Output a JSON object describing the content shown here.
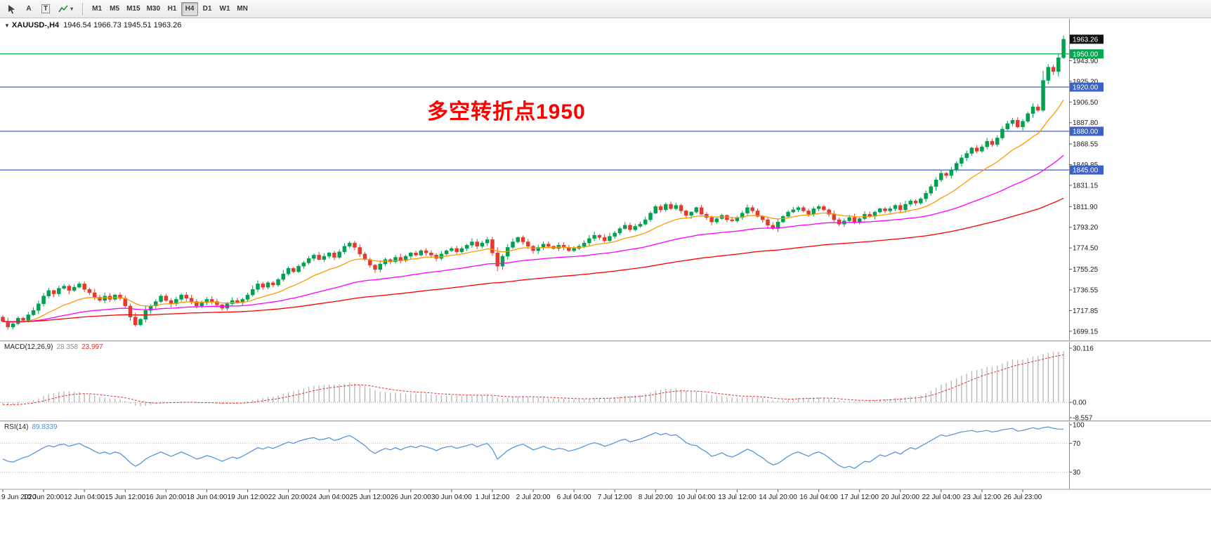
{
  "toolbar": {
    "tools": [
      {
        "label": "A"
      },
      {
        "label": "T"
      }
    ],
    "timeframes": [
      "M1",
      "M5",
      "M15",
      "M30",
      "H1",
      "H4",
      "D1",
      "W1",
      "MN"
    ],
    "active_timeframe": "H4"
  },
  "chart": {
    "symbol_title": "XAUUSD-,H4",
    "ohlc_text": "1946.54 1966.73 1945.51 1963.26",
    "annotation": {
      "text": "多空转折点1950",
      "color": "#FF0000"
    }
  },
  "chart_data": {
    "type": "candlestick",
    "symbol": "XAUUSD",
    "timeframe": "H4",
    "current_ohlc": {
      "open": 1946.54,
      "high": 1966.73,
      "low": 1945.51,
      "close": 1963.26
    },
    "candle_colors": {
      "up": "#00a150",
      "down": "#e13b30"
    },
    "price_axis_range": [
      1691.0,
      1981.6
    ],
    "price_axis_ticks": [
      "1943.90",
      "1925.20",
      "1906.50",
      "1887.80",
      "1868.55",
      "1849.85",
      "1831.15",
      "1811.90",
      "1793.20",
      "1774.50",
      "1755.25",
      "1736.55",
      "1717.85",
      "1699.15"
    ],
    "last_price": {
      "value": 1963.26,
      "label": "1963.26",
      "badge_color": "#111111"
    },
    "horizontal_levels": [
      {
        "price": 1950.0,
        "label": "1950.00",
        "color": "#00A94F"
      },
      {
        "price": 1920.0,
        "label": "1920.00",
        "color": "#3A62C9"
      },
      {
        "price": 1880.0,
        "label": "1880.00",
        "color": "#3A62C9"
      },
      {
        "price": 1845.0,
        "label": "1845.00",
        "color": "#3A62C9"
      }
    ],
    "moving_averages": [
      {
        "name": "fast-ma",
        "period": 16,
        "color": "#FF9900"
      },
      {
        "name": "mid-ma",
        "period": 55,
        "color": "#FF00FF"
      },
      {
        "name": "slow-ma",
        "period": 130,
        "color": "#FF0000"
      }
    ],
    "x_labels": [
      "9 Jun 2020",
      "10 Jun 20:00",
      "12 Jun 04:00",
      "15 Jun 12:00",
      "16 Jun 20:00",
      "18 Jun 04:00",
      "19 Jun 12:00",
      "22 Jun 20:00",
      "24 Jun 04:00",
      "25 Jun 12:00",
      "26 Jun 20:00",
      "30 Jun 04:00",
      "1 Jul 12:00",
      "2 Jul 20:00",
      "6 Jul 04:00",
      "7 Jul 12:00",
      "8 Jul 20:00",
      "10 Jul 04:00",
      "13 Jul 12:00",
      "14 Jul 20:00",
      "16 Jul 04:00",
      "17 Jul 12:00",
      "20 Jul 20:00",
      "22 Jul 04:00",
      "23 Jul 12:00",
      "26 Jul 23:00"
    ],
    "closes": [
      1708,
      1703,
      1706,
      1711,
      1709,
      1714,
      1718,
      1724,
      1731,
      1736,
      1733,
      1738,
      1740,
      1736,
      1739,
      1742,
      1737,
      1734,
      1730,
      1727,
      1731,
      1728,
      1732,
      1729,
      1722,
      1712,
      1705,
      1710,
      1718,
      1722,
      1726,
      1731,
      1727,
      1724,
      1728,
      1732,
      1729,
      1726,
      1722,
      1725,
      1728,
      1726,
      1723,
      1720,
      1724,
      1727,
      1725,
      1728,
      1732,
      1737,
      1742,
      1739,
      1743,
      1741,
      1746,
      1751,
      1756,
      1753,
      1758,
      1761,
      1765,
      1768,
      1764,
      1767,
      1770,
      1766,
      1771,
      1776,
      1779,
      1775,
      1769,
      1764,
      1759,
      1755,
      1760,
      1764,
      1762,
      1766,
      1763,
      1767,
      1770,
      1768,
      1772,
      1770,
      1768,
      1765,
      1769,
      1772,
      1774,
      1771,
      1774,
      1777,
      1780,
      1776,
      1779,
      1782,
      1770,
      1758,
      1767,
      1775,
      1780,
      1784,
      1780,
      1776,
      1772,
      1775,
      1778,
      1776,
      1774,
      1777,
      1775,
      1772,
      1774,
      1776,
      1779,
      1783,
      1786,
      1784,
      1781,
      1785,
      1788,
      1792,
      1795,
      1791,
      1794,
      1796,
      1800,
      1806,
      1812,
      1809,
      1814,
      1810,
      1813,
      1808,
      1804,
      1807,
      1811,
      1805,
      1802,
      1798,
      1801,
      1804,
      1800,
      1799,
      1802,
      1806,
      1811,
      1808,
      1803,
      1800,
      1795,
      1792,
      1798,
      1803,
      1807,
      1809,
      1811,
      1808,
      1805,
      1810,
      1812,
      1809,
      1805,
      1800,
      1796,
      1799,
      1802,
      1798,
      1801,
      1805,
      1803,
      1807,
      1810,
      1808,
      1810,
      1813,
      1809,
      1814,
      1817,
      1815,
      1819,
      1824,
      1830,
      1836,
      1842,
      1840,
      1845,
      1851,
      1856,
      1860,
      1865,
      1862,
      1866,
      1871,
      1868,
      1874,
      1882,
      1887,
      1890,
      1884,
      1889,
      1896,
      1902,
      1899,
      1926,
      1938,
      1934,
      1946.5,
      1963.26
    ],
    "macd": {
      "label": "MACD(12,26,9)",
      "main_value": "28.358",
      "signal_value": "23.997",
      "signal_period": 9,
      "histogram_color": "#b6b6b6",
      "signal_color": "#e03131",
      "scale_labels": [
        "30.116",
        "0.00",
        "-8.557"
      ],
      "values": [
        -1.2,
        -1.6,
        -1.4,
        -0.8,
        -0.2,
        0.4,
        1.2,
        2.2,
        3.4,
        4.5,
        5.2,
        5.8,
        6.2,
        6.0,
        5.8,
        5.7,
        5.2,
        4.6,
        3.8,
        3.0,
        2.6,
        2.2,
        2.0,
        1.7,
        0.8,
        -0.6,
        -1.8,
        -2.2,
        -1.9,
        -1.4,
        -0.8,
        -0.2,
        0.1,
        0.0,
        0.1,
        0.4,
        0.3,
        0.0,
        -0.4,
        -0.5,
        -0.3,
        -0.4,
        -0.7,
        -1.0,
        -0.8,
        -0.5,
        -0.4,
        -0.1,
        0.5,
        1.2,
        2.0,
        2.4,
        3.0,
        3.2,
        3.8,
        4.6,
        5.6,
        6.2,
        7.0,
        7.8,
        8.6,
        9.2,
        9.4,
        9.6,
        9.9,
        9.8,
        10.0,
        10.4,
        10.8,
        10.6,
        10.0,
        9.0,
        7.8,
        6.6,
        6.0,
        5.8,
        5.4,
        5.4,
        5.0,
        4.9,
        5.0,
        4.9,
        5.0,
        4.8,
        4.4,
        4.0,
        3.8,
        3.8,
        3.8,
        3.6,
        3.6,
        3.7,
        3.9,
        3.8,
        3.9,
        4.1,
        3.6,
        2.6,
        2.2,
        2.4,
        2.8,
        3.2,
        3.4,
        3.2,
        2.8,
        2.6,
        2.5,
        2.3,
        2.1,
        2.0,
        1.9,
        1.7,
        1.6,
        1.6,
        1.8,
        2.1,
        2.4,
        2.5,
        2.4,
        2.5,
        2.8,
        3.2,
        3.6,
        3.7,
        3.9,
        4.1,
        4.7,
        5.5,
        6.5,
        7.0,
        7.6,
        7.5,
        7.5,
        7.0,
        6.3,
        6.0,
        5.9,
        5.3,
        4.7,
        3.9,
        3.5,
        3.3,
        2.9,
        2.6,
        2.5,
        2.7,
        3.0,
        3.0,
        2.7,
        2.3,
        1.6,
        1.0,
        0.9,
        1.2,
        1.6,
        2.0,
        2.4,
        2.5,
        2.4,
        2.6,
        2.8,
        2.7,
        2.2,
        1.6,
        1.0,
        0.7,
        0.7,
        0.4,
        0.5,
        0.8,
        0.9,
        1.2,
        1.6,
        1.7,
        2.0,
        2.4,
        2.4,
        2.8,
        3.2,
        3.3,
        4.0,
        5.0,
        6.4,
        8.0,
        9.8,
        10.8,
        12.0,
        13.4,
        14.8,
        16.0,
        17.4,
        18.0,
        18.8,
        19.6,
        19.8,
        20.4,
        21.6,
        22.8,
        23.8,
        23.6,
        23.8,
        24.6,
        25.6,
        25.8,
        26.8,
        27.6,
        28.0,
        28.2,
        28.358
      ]
    },
    "rsi": {
      "label": "RSI(14)",
      "value": "89.8339",
      "line_color": "#4a90d9",
      "levels": [
        70,
        30
      ],
      "scale_labels": [
        "100",
        "70",
        "30"
      ],
      "values": [
        48,
        45,
        44,
        47,
        50,
        52,
        56,
        60,
        64,
        67,
        65,
        68,
        69,
        66,
        68,
        70,
        66,
        63,
        59,
        56,
        58,
        55,
        58,
        56,
        50,
        43,
        38,
        42,
        48,
        52,
        55,
        58,
        55,
        52,
        55,
        58,
        55,
        52,
        48,
        50,
        53,
        51,
        48,
        45,
        48,
        51,
        49,
        52,
        56,
        60,
        64,
        62,
        65,
        63,
        66,
        69,
        72,
        70,
        73,
        75,
        77,
        78,
        75,
        76,
        78,
        74,
        76,
        79,
        81,
        77,
        72,
        67,
        60,
        56,
        60,
        63,
        61,
        64,
        61,
        64,
        66,
        64,
        67,
        65,
        63,
        60,
        63,
        65,
        66,
        63,
        65,
        67,
        69,
        65,
        68,
        70,
        62,
        48,
        54,
        60,
        64,
        67,
        69,
        65,
        61,
        63,
        66,
        63,
        61,
        63,
        62,
        59,
        61,
        63,
        66,
        69,
        71,
        69,
        66,
        68,
        71,
        74,
        76,
        72,
        74,
        76,
        79,
        82,
        85,
        82,
        84,
        81,
        82,
        77,
        71,
        68,
        67,
        62,
        58,
        52,
        54,
        57,
        53,
        51,
        54,
        58,
        62,
        59,
        54,
        50,
        44,
        40,
        42,
        47,
        52,
        56,
        58,
        55,
        52,
        56,
        58,
        55,
        50,
        44,
        39,
        36,
        38,
        35,
        40,
        45,
        44,
        49,
        54,
        52,
        55,
        58,
        55,
        60,
        64,
        62,
        66,
        70,
        74,
        78,
        82,
        80,
        82,
        84,
        86,
        87,
        88,
        86,
        87,
        88,
        86,
        87,
        89,
        90,
        91,
        87,
        88,
        90,
        92,
        90,
        92,
        93,
        91,
        90,
        89.83
      ]
    }
  }
}
